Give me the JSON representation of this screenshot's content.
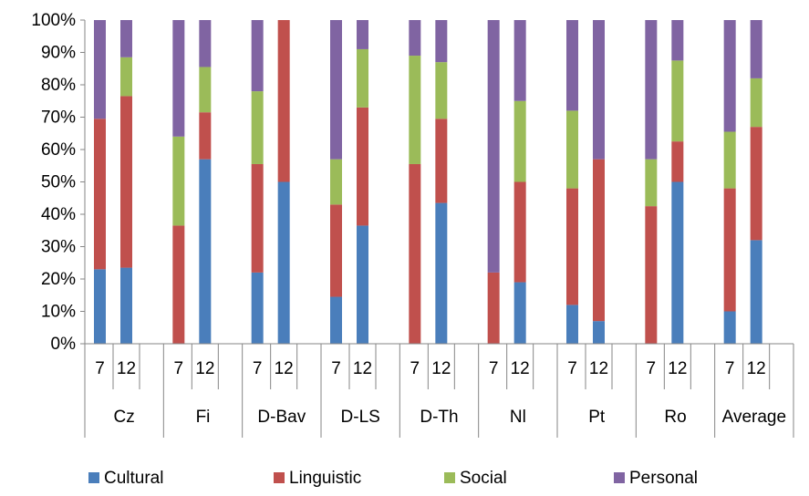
{
  "chart_data": {
    "type": "bar",
    "stacked": "percent",
    "title": "",
    "xlabel": "",
    "ylabel": "",
    "ylim": [
      0,
      100
    ],
    "yticks": [
      "0%",
      "10%",
      "20%",
      "30%",
      "40%",
      "50%",
      "60%",
      "70%",
      "80%",
      "90%",
      "100%"
    ],
    "grid": false,
    "legend_position": "bottom",
    "groups": [
      {
        "name": "Cz",
        "grades": [
          "7",
          "12"
        ]
      },
      {
        "name": "Fi",
        "grades": [
          "7",
          "12"
        ]
      },
      {
        "name": "D-Bav",
        "grades": [
          "7",
          "12"
        ]
      },
      {
        "name": "D-LS",
        "grades": [
          "7",
          "12"
        ]
      },
      {
        "name": "D-Th",
        "grades": [
          "7",
          "12"
        ]
      },
      {
        "name": "Nl",
        "grades": [
          "7",
          "12"
        ]
      },
      {
        "name": "Pt",
        "grades": [
          "7",
          "12"
        ]
      },
      {
        "name": "Ro",
        "grades": [
          "7",
          "12"
        ]
      },
      {
        "name": "Average",
        "grades": [
          "7",
          "12"
        ]
      }
    ],
    "series": [
      {
        "name": "Cultural",
        "color": "#4a7ebb",
        "values": [
          23,
          23.5,
          0,
          57,
          22,
          50,
          14.5,
          36.5,
          0,
          43.5,
          0,
          19,
          12,
          7,
          0,
          50,
          10,
          32
        ]
      },
      {
        "name": "Linguistic",
        "color": "#c0504d",
        "values": [
          46.5,
          53,
          36.5,
          14.5,
          33.5,
          50,
          28.5,
          36.5,
          55.5,
          26,
          22,
          31,
          36,
          50,
          42.5,
          12.5,
          38,
          35
        ]
      },
      {
        "name": "Social",
        "color": "#9bbb59",
        "values": [
          0,
          12,
          27.5,
          14,
          22.5,
          0,
          14,
          18,
          33.5,
          17.5,
          0,
          25,
          24,
          0,
          14.5,
          25,
          17.5,
          15
        ]
      },
      {
        "name": "Personal",
        "color": "#8064a2",
        "values": [
          30.5,
          11.5,
          36,
          14.5,
          22,
          0,
          43,
          9,
          11,
          13,
          78,
          25,
          28,
          43,
          43,
          12.5,
          34.5,
          18
        ]
      }
    ]
  }
}
